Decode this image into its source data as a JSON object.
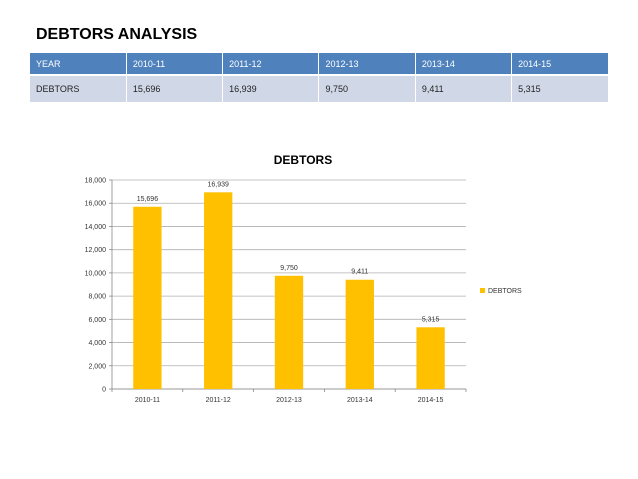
{
  "title": "DEBTORS ANALYSIS",
  "table": {
    "headers": [
      "YEAR",
      "2010-11",
      "2011-12",
      "2012-13",
      "2013-14",
      "2014-15"
    ],
    "rows": [
      [
        "DEBTORS",
        "15,696",
        "16,939",
        "9,750",
        "9,411",
        "5,315"
      ]
    ]
  },
  "colors": {
    "header_bg": "#4f81bd",
    "row_bg": "#d0d8e8",
    "bar": "#ffc000"
  },
  "chart_data": {
    "type": "bar",
    "title": "DEBTORS",
    "categories": [
      "2010-11",
      "2011-12",
      "2012-13",
      "2013-14",
      "2014-15"
    ],
    "series": [
      {
        "name": "DEBTORS",
        "values": [
          15696,
          16939,
          9750,
          9411,
          5315
        ]
      }
    ],
    "data_labels": [
      "15,696",
      "16,939",
      "9,750",
      "9,411",
      "5,315"
    ],
    "yticks": [
      "0",
      "2,000",
      "4,000",
      "6,000",
      "8,000",
      "10,000",
      "12,000",
      "14,000",
      "16,000",
      "18,000"
    ],
    "ylim": [
      0,
      18000
    ],
    "xlabel": "",
    "ylabel": "",
    "grid": true,
    "legend": "right"
  }
}
